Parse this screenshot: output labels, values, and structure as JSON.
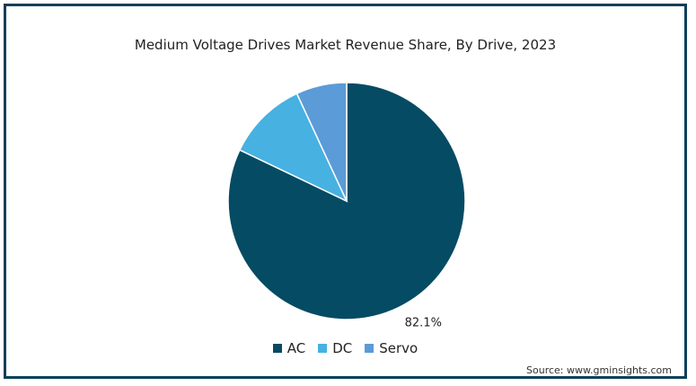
{
  "chart_data": {
    "type": "pie",
    "title": "Medium Voltage Drives Market Revenue Share, By Drive, 2023",
    "categories": [
      "AC",
      "DC",
      "Servo"
    ],
    "values": [
      82.1,
      11.0,
      6.9
    ],
    "colors": [
      "#054b63",
      "#47b1e2",
      "#5b9bd7"
    ],
    "data_labels": [
      "82.1%",
      "",
      ""
    ],
    "legend_position": "bottom",
    "source": "Source: www.gminsights.com"
  }
}
